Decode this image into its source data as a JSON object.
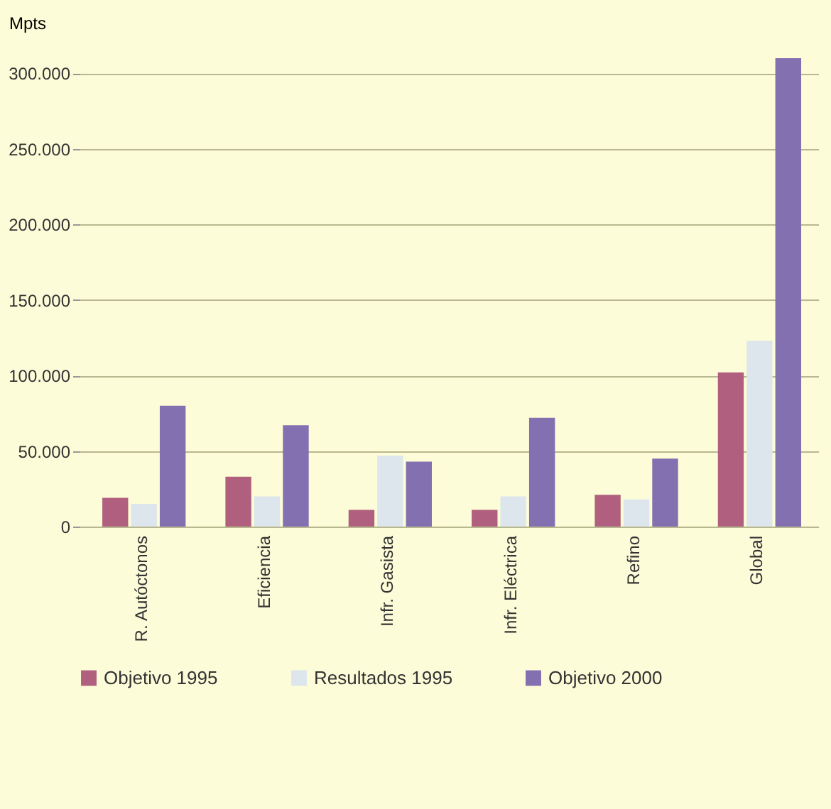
{
  "chart_data": {
    "type": "bar",
    "ylabel": "Mpts",
    "categories": [
      "R. Autóctonos",
      "Eficiencia",
      "Infr. Gasista",
      "Infr. Eléctrica",
      "Refino",
      "Global"
    ],
    "series": [
      {
        "name": "Objetivo 1995",
        "color": "#b0607e",
        "values": [
          19000,
          33000,
          11000,
          11000,
          21000,
          102000
        ]
      },
      {
        "name": "Resultados 1995",
        "color": "#dde6ec",
        "values": [
          15000,
          20000,
          47000,
          20000,
          18000,
          123000
        ]
      },
      {
        "name": "Objetivo 2000",
        "color": "#8270b0",
        "values": [
          80000,
          67000,
          43000,
          72000,
          45000,
          310000
        ]
      }
    ],
    "ylim": [
      0,
      310000
    ],
    "yticks": [
      {
        "value": 0,
        "label": "0"
      },
      {
        "value": 50000,
        "label": "50.000"
      },
      {
        "value": 100000,
        "label": "100.000"
      },
      {
        "value": 150000,
        "label": "150.000"
      },
      {
        "value": 200000,
        "label": "200.000"
      },
      {
        "value": 250000,
        "label": "250.000"
      },
      {
        "value": 300000,
        "label": "300.000"
      }
    ],
    "grid": "y",
    "legend": "bottom"
  }
}
